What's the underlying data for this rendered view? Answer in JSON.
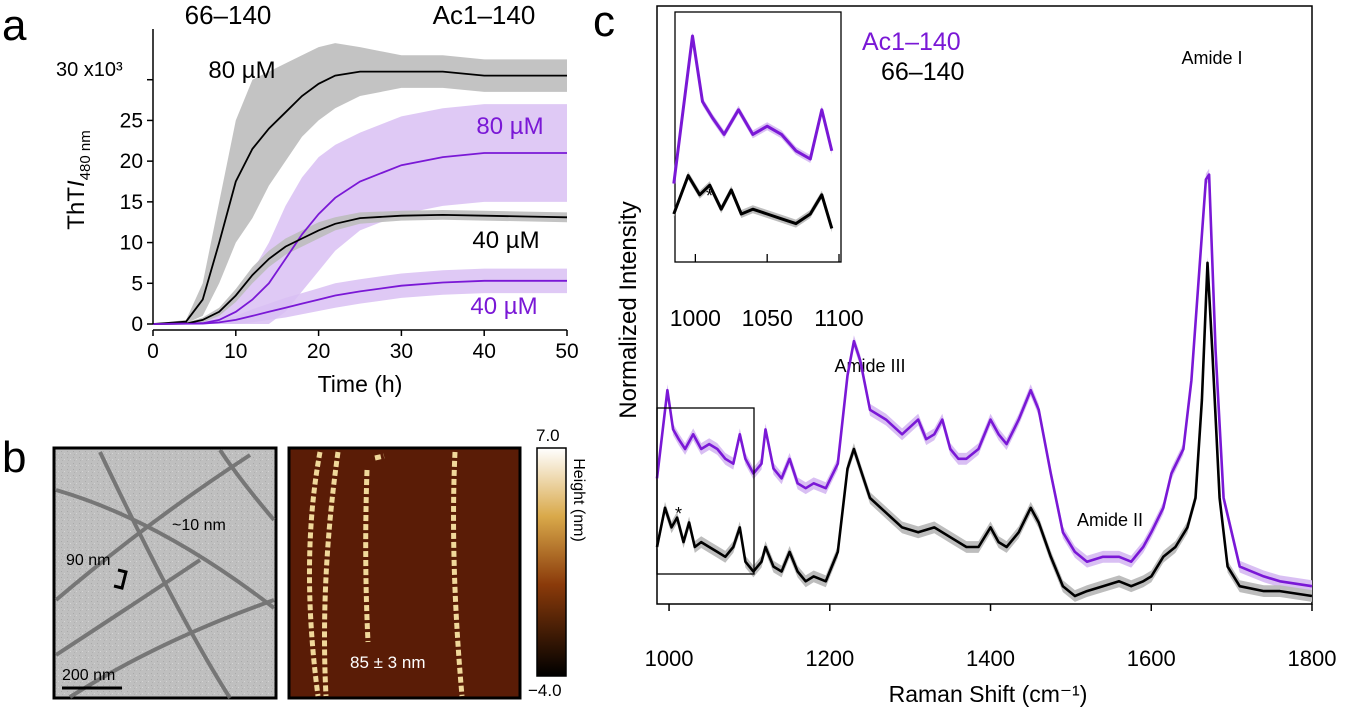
{
  "colors": {
    "purple": "#7a18d6",
    "purple_band": "#d9bff3",
    "gray_band": "#bdbdbd",
    "black": "#000000",
    "afm_bg": "#5a1c06",
    "fibril": "#f0d89a"
  },
  "panels": {
    "a": {
      "label": "a",
      "header_left": "66–140",
      "header_right": "Ac1–140"
    },
    "b": {
      "label": "b"
    },
    "c": {
      "label": "c"
    }
  },
  "chart_data": [
    {
      "type": "line",
      "panel": "a",
      "title": "",
      "xlabel": "Time (h)",
      "ylabel_main": "ThT",
      "ylabel_italic": "I",
      "ylabel_sub": "480 nm",
      "y_multiplier": "30 x10³",
      "xlim": [
        0,
        50
      ],
      "ylim": [
        0,
        35
      ],
      "xticks": [
        0,
        10,
        20,
        30,
        40,
        50
      ],
      "yticks": [
        0,
        5,
        10,
        15,
        20,
        25
      ],
      "series": [
        {
          "name": "66–140 80 µM",
          "label": "80 µM",
          "color": "black",
          "x": [
            0,
            4,
            6,
            8,
            10,
            12,
            14,
            16,
            18,
            20,
            22,
            25,
            30,
            35,
            40,
            45,
            50
          ],
          "y": [
            0,
            0.3,
            3,
            10,
            17.5,
            21.5,
            24,
            26,
            28,
            29.5,
            30.5,
            31,
            31,
            31,
            30.5,
            30.5,
            30.5
          ],
          "err": [
            0,
            0.2,
            2,
            5,
            7.5,
            8.5,
            7,
            6,
            5,
            4.5,
            4,
            3,
            2,
            2,
            2,
            2,
            2
          ]
        },
        {
          "name": "Ac1–140 80 µM",
          "label": "80 µM",
          "color": "purple",
          "x": [
            0,
            6,
            8,
            10,
            12,
            14,
            16,
            18,
            20,
            22,
            25,
            30,
            35,
            40,
            45,
            50
          ],
          "y": [
            0,
            0.1,
            0.5,
            1.5,
            3,
            5,
            8,
            11,
            13.5,
            15.5,
            17.5,
            19.5,
            20.5,
            21,
            21,
            21
          ],
          "err": [
            0,
            0.2,
            0.8,
            2,
            3.5,
            5,
            6.5,
            7,
            7,
            6.5,
            6,
            6,
            6,
            6,
            6,
            6
          ]
        },
        {
          "name": "66–140 40 µM",
          "label": "40 µM",
          "color": "black",
          "x": [
            0,
            4,
            6,
            8,
            10,
            12,
            14,
            16,
            18,
            20,
            22,
            25,
            30,
            35,
            40,
            45,
            50
          ],
          "y": [
            0,
            0.05,
            0.5,
            1.5,
            3.5,
            6,
            8,
            9.5,
            10.5,
            11.5,
            12.3,
            13,
            13.3,
            13.4,
            13.3,
            13.2,
            13.1
          ],
          "err": [
            0,
            0.1,
            0.3,
            0.5,
            0.8,
            1,
            1,
            1,
            1,
            1,
            0.8,
            0.7,
            0.6,
            0.6,
            0.6,
            0.6,
            0.6
          ]
        },
        {
          "name": "Ac1–140 40 µM",
          "label": "40 µM",
          "color": "purple",
          "x": [
            0,
            6,
            8,
            10,
            12,
            14,
            16,
            18,
            20,
            22,
            25,
            30,
            35,
            40,
            45,
            50
          ],
          "y": [
            0,
            0.05,
            0.2,
            0.5,
            1,
            1.5,
            2,
            2.5,
            3,
            3.5,
            4,
            4.7,
            5.1,
            5.3,
            5.3,
            5.3
          ],
          "err": [
            0,
            0.1,
            0.2,
            0.5,
            0.8,
            1,
            1.2,
            1.3,
            1.4,
            1.5,
            1.5,
            1.5,
            1.5,
            1.5,
            1.5,
            1.5
          ]
        }
      ]
    },
    {
      "type": "line",
      "panel": "c",
      "title": "",
      "xlabel": "Raman Shift (cm⁻¹)",
      "ylabel": "Normalized Intensity",
      "xlim": [
        985,
        1800
      ],
      "ylim": [
        0,
        1
      ],
      "xticks": [
        1000,
        1200,
        1400,
        1600,
        1800
      ],
      "legend": [
        "Ac1–140",
        "66–140"
      ],
      "annotations": [
        "Amide I",
        "Amide III",
        "Amide II",
        "*"
      ],
      "series": [
        {
          "name": "Ac1–140",
          "color": "purple",
          "x": [
            985,
            998,
            1005,
            1012,
            1020,
            1030,
            1040,
            1050,
            1060,
            1070,
            1080,
            1088,
            1095,
            1105,
            1115,
            1120,
            1130,
            1140,
            1150,
            1160,
            1170,
            1180,
            1195,
            1210,
            1222,
            1230,
            1238,
            1250,
            1270,
            1290,
            1310,
            1320,
            1330,
            1340,
            1350,
            1360,
            1370,
            1385,
            1400,
            1410,
            1420,
            1435,
            1450,
            1460,
            1475,
            1490,
            1505,
            1520,
            1540,
            1560,
            1575,
            1590,
            1600,
            1615,
            1625,
            1640,
            1650,
            1660,
            1668,
            1672,
            1680,
            1690,
            1710,
            1740,
            1760,
            1800
          ],
          "y": [
            0.24,
            0.42,
            0.34,
            0.32,
            0.3,
            0.33,
            0.3,
            0.31,
            0.3,
            0.28,
            0.27,
            0.33,
            0.28,
            0.25,
            0.27,
            0.34,
            0.26,
            0.24,
            0.28,
            0.23,
            0.22,
            0.23,
            0.22,
            0.27,
            0.45,
            0.52,
            0.48,
            0.38,
            0.36,
            0.33,
            0.36,
            0.32,
            0.33,
            0.36,
            0.3,
            0.28,
            0.28,
            0.3,
            0.36,
            0.33,
            0.31,
            0.36,
            0.42,
            0.38,
            0.25,
            0.13,
            0.09,
            0.07,
            0.08,
            0.08,
            0.07,
            0.1,
            0.13,
            0.18,
            0.25,
            0.3,
            0.44,
            0.67,
            0.85,
            0.86,
            0.5,
            0.2,
            0.06,
            0.04,
            0.03,
            0.02
          ]
        },
        {
          "name": "66–140",
          "color": "black",
          "x": [
            985,
            995,
            1003,
            1010,
            1018,
            1025,
            1032,
            1040,
            1050,
            1060,
            1070,
            1080,
            1088,
            1095,
            1105,
            1115,
            1120,
            1130,
            1140,
            1150,
            1160,
            1170,
            1180,
            1195,
            1210,
            1222,
            1230,
            1240,
            1250,
            1270,
            1290,
            1310,
            1330,
            1350,
            1370,
            1385,
            1400,
            1410,
            1420,
            1435,
            1450,
            1460,
            1475,
            1490,
            1505,
            1520,
            1540,
            1560,
            1575,
            1590,
            1600,
            1615,
            1630,
            1645,
            1655,
            1663,
            1670,
            1676,
            1685,
            1695,
            1710,
            1740,
            1760,
            1800
          ],
          "y": [
            0.1,
            0.18,
            0.14,
            0.16,
            0.11,
            0.15,
            0.1,
            0.11,
            0.1,
            0.09,
            0.08,
            0.1,
            0.14,
            0.07,
            0.05,
            0.07,
            0.1,
            0.06,
            0.05,
            0.09,
            0.05,
            0.03,
            0.04,
            0.03,
            0.09,
            0.26,
            0.3,
            0.25,
            0.2,
            0.17,
            0.14,
            0.13,
            0.14,
            0.12,
            0.1,
            0.1,
            0.14,
            0.11,
            0.1,
            0.13,
            0.18,
            0.15,
            0.08,
            0.02,
            0.0,
            0.01,
            0.02,
            0.03,
            0.02,
            0.03,
            0.04,
            0.08,
            0.1,
            0.14,
            0.2,
            0.4,
            0.68,
            0.5,
            0.2,
            0.06,
            0.02,
            0.01,
            0.01,
            0.0
          ]
        }
      ],
      "inset": {
        "xlim": [
          990,
          1100
        ],
        "xticks": [
          1000,
          1050,
          1100
        ],
        "star": "*"
      }
    }
  ],
  "panel_b": {
    "tem": {
      "label_width": "~10 nm",
      "label_period": "90 nm",
      "scale_bar": "200 nm"
    },
    "afm": {
      "label_period": "85 ± 3 nm",
      "colorbar_max": "7.0",
      "colorbar_min": "−4.0",
      "colorbar_label": "Height (nm)"
    }
  }
}
